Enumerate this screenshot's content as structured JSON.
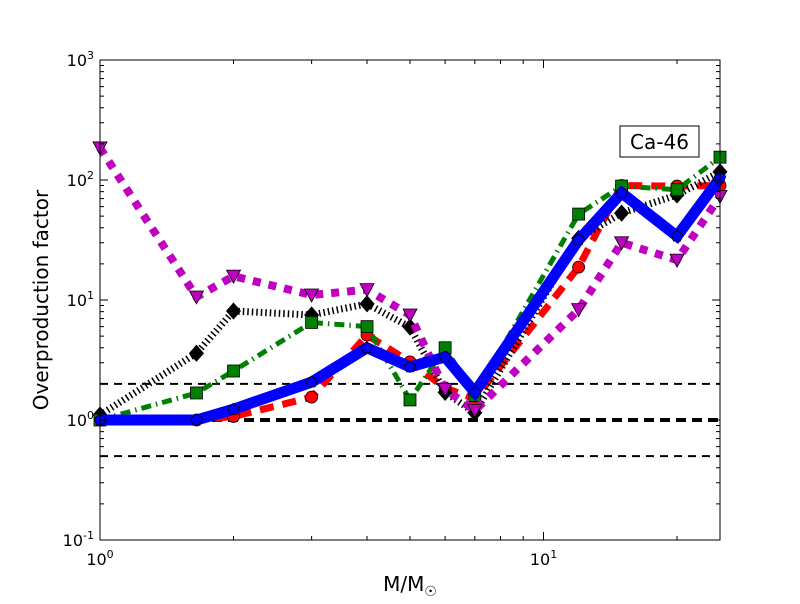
{
  "chart_data": {
    "type": "line",
    "title": "",
    "annotation": "Ca-46",
    "xlabel": "M/M",
    "xlabel_subscript": "☉",
    "ylabel": "Overproduction factor",
    "xscale": "log",
    "yscale": "log",
    "xlim": [
      1,
      25
    ],
    "ylim": [
      0.1,
      1000
    ],
    "x_ticks": [
      {
        "value": 1,
        "base": "10",
        "exp": "0"
      },
      {
        "value": 10,
        "base": "10",
        "exp": "1"
      }
    ],
    "y_ticks": [
      {
        "value": 0.1,
        "base": "10",
        "exp": "-1"
      },
      {
        "value": 1,
        "base": "10",
        "exp": "0"
      },
      {
        "value": 10,
        "base": "10",
        "exp": "1"
      },
      {
        "value": 100,
        "base": "10",
        "exp": "2"
      },
      {
        "value": 1000,
        "base": "10",
        "exp": "3"
      }
    ],
    "reference_lines": [
      {
        "y": 2,
        "style": "dashed"
      },
      {
        "y": 1,
        "style": "dashed-thick"
      },
      {
        "y": 0.5,
        "style": "dashed"
      }
    ],
    "x": [
      1,
      1.65,
      2,
      3,
      4,
      5,
      6,
      7,
      12,
      15,
      20,
      25
    ],
    "series": [
      {
        "color": "#ff0000",
        "linestyle": "dashed",
        "marker": "circle",
        "values": [
          1.0,
          1.0,
          1.07,
          1.55,
          5.1,
          3.05,
          1.85,
          1.5,
          18.8,
          90,
          89,
          90
        ]
      },
      {
        "color": "#000000",
        "linestyle": "dotted",
        "marker": "diamond",
        "values": [
          1.1,
          3.6,
          8.1,
          7.5,
          9.3,
          5.95,
          1.7,
          1.15,
          32.6,
          53,
          75,
          117
        ]
      },
      {
        "color": "#008000",
        "linestyle": "dashdot",
        "marker": "square",
        "values": [
          1.0,
          1.68,
          2.56,
          6.5,
          6.0,
          1.47,
          4.0,
          1.6,
          52,
          89,
          83,
          155
        ]
      },
      {
        "color": "#bf00bf",
        "linestyle": "dotted-thick",
        "marker": "triangle-down",
        "values": [
          185,
          10.6,
          15.8,
          11,
          12.2,
          7.5,
          1.8,
          1.2,
          8.3,
          30,
          21.5,
          73
        ]
      },
      {
        "color": "#0000ff",
        "linestyle": "solid",
        "marker": "pentagon",
        "values": [
          1.0,
          1.0,
          1.23,
          2.07,
          4.0,
          2.77,
          3.35,
          1.7,
          31.6,
          78,
          34,
          104
        ]
      }
    ],
    "grid": false,
    "legend": "none"
  }
}
